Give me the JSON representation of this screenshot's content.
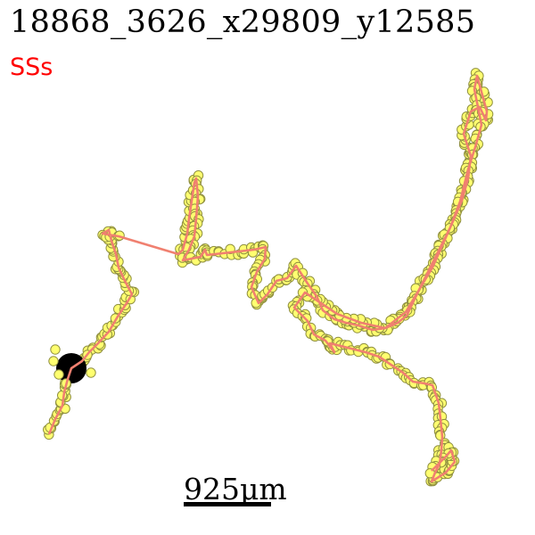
{
  "title": "18868_3626_x29809_y12585",
  "label": "SSs",
  "scale_bar": {
    "text": "925μm"
  },
  "colors": {
    "path": "#f08070",
    "marker_fill": "#ffff70",
    "marker_stroke": "#909040",
    "soma": "#000000",
    "label": "#ff0000"
  }
}
